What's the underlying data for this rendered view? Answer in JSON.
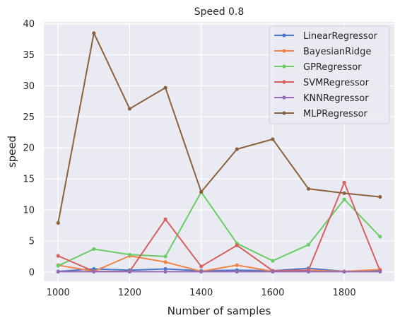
{
  "chart_data": {
    "type": "line",
    "title": "Speed 0.8",
    "xlabel": "Number of samples",
    "ylabel": "speed",
    "xlim": [
      960,
      1940
    ],
    "ylim": [
      -1.5,
      40.3
    ],
    "x_ticks": [
      1000,
      1200,
      1400,
      1600,
      1800
    ],
    "y_ticks": [
      0,
      5,
      10,
      15,
      20,
      25,
      30,
      35,
      40
    ],
    "grid": true,
    "legend_position": "top-right",
    "x": [
      1000,
      1100,
      1200,
      1300,
      1400,
      1500,
      1600,
      1700,
      1800,
      1900
    ],
    "series": [
      {
        "name": "LinearRegressor",
        "color": "#4878d0",
        "values": [
          0.1,
          0.5,
          0.3,
          0.5,
          0.2,
          0.3,
          0.2,
          0.6,
          0.1,
          0.2
        ]
      },
      {
        "name": "BayesianRidge",
        "color": "#ee854a",
        "values": [
          1.1,
          0.1,
          2.6,
          1.6,
          0.1,
          1.1,
          0.1,
          0.3,
          0.1,
          0.4
        ]
      },
      {
        "name": "GPRegressor",
        "color": "#6acc64",
        "values": [
          1.0,
          3.7,
          2.8,
          2.5,
          12.9,
          4.6,
          1.8,
          4.4,
          11.7,
          5.7
        ]
      },
      {
        "name": "SVMRegressor",
        "color": "#d65f5f",
        "values": [
          2.6,
          0.1,
          0.1,
          8.5,
          0.9,
          4.3,
          0.2,
          0.3,
          14.4,
          0.2
        ]
      },
      {
        "name": "KNNRegressor",
        "color": "#956cb4",
        "values": [
          0.05,
          0.05,
          0.05,
          0.05,
          0.05,
          0.05,
          0.05,
          0.05,
          0.05,
          0.05
        ]
      },
      {
        "name": "MLPRegressor",
        "color": "#8c613c",
        "values": [
          7.9,
          38.5,
          26.3,
          29.7,
          12.9,
          19.8,
          21.4,
          13.4,
          12.7,
          12.1
        ]
      }
    ]
  }
}
